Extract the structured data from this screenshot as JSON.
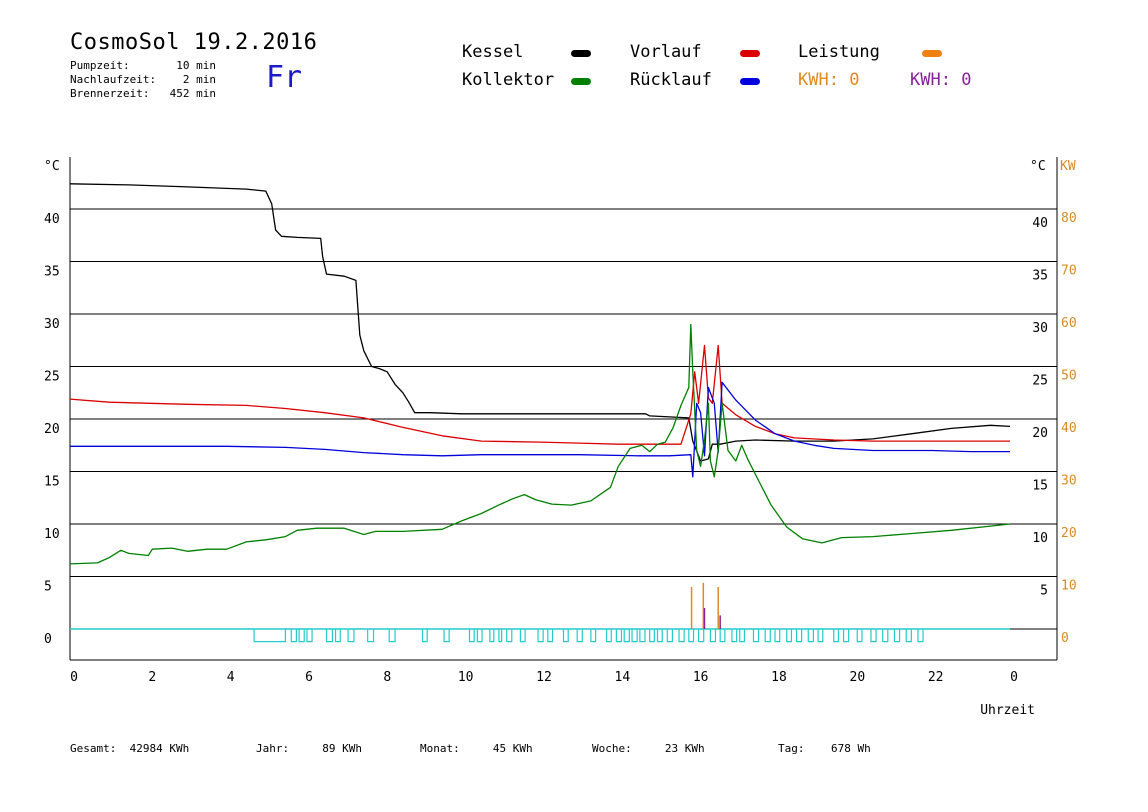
{
  "header": {
    "title": "CosmoSol 19.2.2016",
    "day": "Fr",
    "info": [
      {
        "key": "Pumpzeit:",
        "value": "10 min"
      },
      {
        "key": "Nachlaufzeit:",
        "value": "2 min"
      },
      {
        "key": "Brennerzeit:",
        "value": "452 min"
      }
    ]
  },
  "legend": {
    "kessel": {
      "label": "Kessel",
      "color": "#000000"
    },
    "vorlauf": {
      "label": "Vorlauf",
      "color": "#dd0000"
    },
    "leistung": {
      "label": "Leistung",
      "color": "#f08010"
    },
    "kollektor": {
      "label": "Kollektor",
      "color": "#008000"
    },
    "ruecklauf": {
      "label": "Rücklauf",
      "color": "#0000dd"
    },
    "kwh_orange": {
      "label": "KWH:",
      "value": "0",
      "color": "#e08a20"
    },
    "kwh_purple": {
      "label": "KWH:",
      "value": "0",
      "color": "#882299"
    }
  },
  "footer": [
    {
      "label": "Gesamt:",
      "value": "42984 KWh"
    },
    {
      "label": "Jahr:",
      "value": "89 KWh"
    },
    {
      "label": "Monat:",
      "value": "45 KWh"
    },
    {
      "label": "Woche:",
      "value": "23 KWh"
    },
    {
      "label": "Tag:",
      "value": "678 Wh"
    }
  ],
  "chart_data": {
    "type": "line",
    "xlabel": "Uhrzeit",
    "ylabel_left": "°C",
    "ylabel_right": "°C",
    "ylabel_kw": "KW",
    "x_ticks": [
      "0",
      "2",
      "4",
      "6",
      "8",
      "10",
      "12",
      "14",
      "16",
      "18",
      "20",
      "22",
      "0"
    ],
    "xlim": [
      0,
      24
    ],
    "ylim": [
      -3,
      45
    ],
    "y_ticks_left": [
      "0",
      "5",
      "10",
      "15",
      "20",
      "25",
      "30",
      "35",
      "40"
    ],
    "y_ticks_right": [
      "5",
      "10",
      "15",
      "20",
      "25",
      "30",
      "35",
      "40"
    ],
    "y_ticks_kw": [
      "0",
      "10",
      "20",
      "30",
      "40",
      "50",
      "60",
      "70",
      "80"
    ],
    "grid": "horizontal",
    "series": [
      {
        "name": "Kessel",
        "color": "#000000",
        "points": [
          [
            0,
            42.4
          ],
          [
            1.5,
            42.3
          ],
          [
            3,
            42.1
          ],
          [
            4.5,
            41.9
          ],
          [
            5.0,
            41.7
          ],
          [
            5.15,
            40.5
          ],
          [
            5.25,
            38.0
          ],
          [
            5.4,
            37.4
          ],
          [
            5.8,
            37.3
          ],
          [
            6.4,
            37.2
          ],
          [
            6.45,
            35.5
          ],
          [
            6.55,
            33.8
          ],
          [
            7.0,
            33.6
          ],
          [
            7.3,
            33.2
          ],
          [
            7.4,
            28.0
          ],
          [
            7.5,
            26.5
          ],
          [
            7.7,
            25.0
          ],
          [
            7.9,
            24.8
          ],
          [
            8.1,
            24.5
          ],
          [
            8.3,
            23.3
          ],
          [
            8.5,
            22.5
          ],
          [
            8.65,
            21.6
          ],
          [
            8.8,
            20.6
          ],
          [
            9.2,
            20.6
          ],
          [
            10,
            20.5
          ],
          [
            12,
            20.5
          ],
          [
            14,
            20.5
          ],
          [
            14.7,
            20.5
          ],
          [
            14.8,
            20.3
          ],
          [
            15.8,
            20.1
          ],
          [
            15.9,
            17.9
          ],
          [
            16.1,
            16.0
          ],
          [
            16.3,
            16.2
          ],
          [
            16.4,
            17.6
          ],
          [
            16.6,
            17.6
          ],
          [
            17,
            17.9
          ],
          [
            17.5,
            18.0
          ],
          [
            18.5,
            17.9
          ],
          [
            19.5,
            17.9
          ],
          [
            20.5,
            18.1
          ],
          [
            21.5,
            18.6
          ],
          [
            22.5,
            19.1
          ],
          [
            23.5,
            19.4
          ],
          [
            24,
            19.3
          ]
        ]
      },
      {
        "name": "Vorlauf",
        "color": "#dd0000",
        "points": [
          [
            0,
            21.9
          ],
          [
            1,
            21.6
          ],
          [
            3,
            21.4
          ],
          [
            4.5,
            21.3
          ],
          [
            5.5,
            21.0
          ],
          [
            6.5,
            20.6
          ],
          [
            7.5,
            20.1
          ],
          [
            8.5,
            19.2
          ],
          [
            9.5,
            18.4
          ],
          [
            10.5,
            17.9
          ],
          [
            12,
            17.8
          ],
          [
            13,
            17.7
          ],
          [
            14,
            17.6
          ],
          [
            15,
            17.6
          ],
          [
            15.6,
            17.6
          ],
          [
            15.85,
            20.5
          ],
          [
            15.95,
            24.5
          ],
          [
            16.05,
            21.5
          ],
          [
            16.2,
            27.0
          ],
          [
            16.3,
            22.0
          ],
          [
            16.4,
            21.5
          ],
          [
            16.55,
            27.0
          ],
          [
            16.65,
            21.5
          ],
          [
            17.0,
            20.4
          ],
          [
            17.5,
            19.3
          ],
          [
            18.0,
            18.6
          ],
          [
            18.5,
            18.2
          ],
          [
            19.5,
            18.0
          ],
          [
            20.5,
            17.9
          ],
          [
            22,
            17.9
          ],
          [
            24,
            17.9
          ]
        ]
      },
      {
        "name": "Rücklauf",
        "color": "#0000dd",
        "points": [
          [
            0,
            17.4
          ],
          [
            2,
            17.4
          ],
          [
            4,
            17.4
          ],
          [
            5.5,
            17.3
          ],
          [
            6.5,
            17.1
          ],
          [
            7.5,
            16.8
          ],
          [
            8.5,
            16.6
          ],
          [
            9.5,
            16.5
          ],
          [
            10.5,
            16.6
          ],
          [
            12,
            16.6
          ],
          [
            13,
            16.6
          ],
          [
            14.5,
            16.5
          ],
          [
            15.3,
            16.5
          ],
          [
            15.85,
            16.6
          ],
          [
            15.9,
            14.5
          ],
          [
            16.0,
            21.5
          ],
          [
            16.1,
            20.6
          ],
          [
            16.2,
            16.5
          ],
          [
            16.3,
            23.0
          ],
          [
            16.45,
            21.5
          ],
          [
            16.55,
            16.8
          ],
          [
            16.65,
            23.5
          ],
          [
            17.0,
            21.8
          ],
          [
            17.5,
            19.9
          ],
          [
            18.0,
            18.6
          ],
          [
            18.5,
            17.9
          ],
          [
            19,
            17.5
          ],
          [
            19.5,
            17.2
          ],
          [
            20.5,
            17.0
          ],
          [
            22,
            17.0
          ],
          [
            23,
            16.9
          ],
          [
            24,
            16.9
          ]
        ]
      },
      {
        "name": "Kollektor",
        "color": "#008000",
        "points": [
          [
            0,
            6.2
          ],
          [
            0.7,
            6.3
          ],
          [
            1.0,
            6.8
          ],
          [
            1.3,
            7.5
          ],
          [
            1.5,
            7.2
          ],
          [
            2,
            7.0
          ],
          [
            2.1,
            7.6
          ],
          [
            2.6,
            7.7
          ],
          [
            3.0,
            7.4
          ],
          [
            3.5,
            7.6
          ],
          [
            4.0,
            7.6
          ],
          [
            4.5,
            8.3
          ],
          [
            5.0,
            8.5
          ],
          [
            5.5,
            8.8
          ],
          [
            5.8,
            9.4
          ],
          [
            6.3,
            9.6
          ],
          [
            7.0,
            9.6
          ],
          [
            7.5,
            9.0
          ],
          [
            7.8,
            9.3
          ],
          [
            8.5,
            9.3
          ],
          [
            9.5,
            9.5
          ],
          [
            10.0,
            10.3
          ],
          [
            10.5,
            11.0
          ],
          [
            11.0,
            11.9
          ],
          [
            11.3,
            12.4
          ],
          [
            11.6,
            12.8
          ],
          [
            11.9,
            12.3
          ],
          [
            12.3,
            11.9
          ],
          [
            12.8,
            11.8
          ],
          [
            13.3,
            12.2
          ],
          [
            13.8,
            13.5
          ],
          [
            14.0,
            15.5
          ],
          [
            14.3,
            17.2
          ],
          [
            14.6,
            17.5
          ],
          [
            14.8,
            16.9
          ],
          [
            15.0,
            17.6
          ],
          [
            15.2,
            17.8
          ],
          [
            15.4,
            19.2
          ],
          [
            15.6,
            21.3
          ],
          [
            15.8,
            23.0
          ],
          [
            15.85,
            29.0
          ],
          [
            15.9,
            24.5
          ],
          [
            16.0,
            17.0
          ],
          [
            16.1,
            15.5
          ],
          [
            16.2,
            18.0
          ],
          [
            16.3,
            21.5
          ],
          [
            16.35,
            16.0
          ],
          [
            16.45,
            14.5
          ],
          [
            16.55,
            17.0
          ],
          [
            16.65,
            21.5
          ],
          [
            16.8,
            17.0
          ],
          [
            17.0,
            16.0
          ],
          [
            17.15,
            17.5
          ],
          [
            17.3,
            16.2
          ],
          [
            17.6,
            14.0
          ],
          [
            17.9,
            11.8
          ],
          [
            18.3,
            9.7
          ],
          [
            18.7,
            8.6
          ],
          [
            19.2,
            8.2
          ],
          [
            19.7,
            8.7
          ],
          [
            20.5,
            8.8
          ],
          [
            21.5,
            9.1
          ],
          [
            22.5,
            9.4
          ],
          [
            23.5,
            9.8
          ],
          [
            24,
            10.0
          ]
        ]
      }
    ]
  }
}
